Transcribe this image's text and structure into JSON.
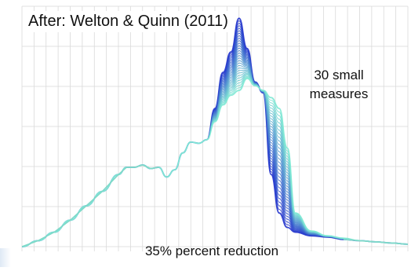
{
  "chart_data": {
    "type": "line",
    "title": "After: Welton & Quinn (2011)",
    "annotations": [
      "30 small measures",
      "35% percent reduction"
    ],
    "xlabel": "",
    "ylabel": "",
    "grid": true,
    "series_count": 30,
    "reduction_percent": 35,
    "x": [
      0,
      2,
      4,
      6,
      8,
      10,
      12,
      13,
      14,
      15,
      16,
      17,
      18,
      19,
      20,
      21,
      22,
      23,
      24,
      25,
      26,
      27,
      28,
      29,
      30,
      31,
      32,
      33,
      34,
      36,
      38,
      40,
      42,
      44,
      46,
      48
    ],
    "series": [
      {
        "values": [
          0,
          5,
          12,
          22,
          34,
          46,
          60,
          66,
          66,
          68,
          65,
          66,
          58,
          64,
          78,
          87,
          86,
          89,
          115,
          145,
          162,
          190,
          165,
          137,
          128,
          60,
          28,
          16,
          12,
          9,
          8,
          6,
          5,
          4,
          3,
          2
        ]
      },
      {
        "values": [
          0,
          5,
          12,
          22,
          34,
          46,
          60,
          66,
          66,
          68,
          65,
          66,
          58,
          64,
          78,
          87,
          86,
          89,
          104,
          118,
          126,
          130,
          140,
          134,
          130,
          124,
          115,
          82,
          28,
          13,
          9,
          7,
          5,
          4,
          3,
          2
        ]
      }
    ],
    "colors": {
      "start": "#2233cc",
      "end": "#7ee8d4",
      "base": "#7fd9c8",
      "grid": "#d9d9d9"
    }
  },
  "text": {
    "title": "After: Welton & Quinn (2011)",
    "note_top_line1": "30 small",
    "note_top_line2": "measures",
    "note_bottom": "35% percent reduction"
  }
}
